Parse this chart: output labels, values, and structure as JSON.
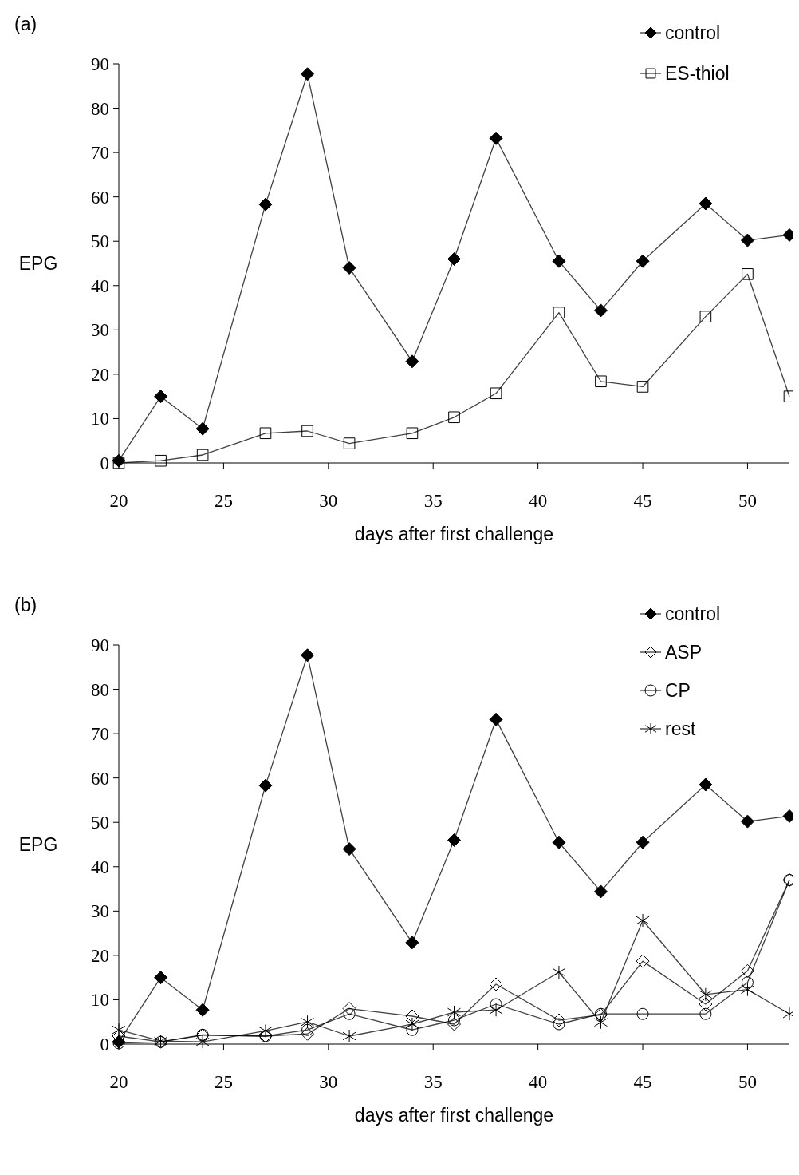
{
  "chart_data": [
    {
      "type": "line",
      "annotations": [
        "(a)"
      ],
      "xlabel": "days after first challenge",
      "ylabel": "EPG",
      "x": [
        20,
        22,
        24,
        27,
        29,
        31,
        34,
        36,
        38,
        41,
        43,
        45,
        48,
        50,
        52
      ],
      "xlim": [
        20,
        52
      ],
      "xticks": [
        20,
        25,
        30,
        35,
        40,
        45,
        50
      ],
      "ylim": [
        0,
        90
      ],
      "yticks": [
        0,
        10,
        20,
        30,
        40,
        50,
        60,
        70,
        80,
        90
      ],
      "grid": false,
      "legend": "top right",
      "series": [
        {
          "name": "control",
          "color": "#000000",
          "marker": "diamond",
          "values": [
            0.5,
            15,
            7.7,
            58.3,
            87.7,
            44,
            22.9,
            46,
            73.2,
            45.5,
            34.4,
            45.5,
            58.5,
            50.2,
            51.4
          ]
        },
        {
          "name": "ES-thiol",
          "color": "#000000",
          "marker": "square",
          "values": [
            0,
            0.5,
            1.8,
            6.7,
            7.2,
            4.4,
            6.7,
            10.3,
            15.7,
            33.9,
            18.4,
            17.2,
            33,
            42.6,
            15
          ]
        }
      ]
    },
    {
      "type": "line",
      "annotations": [
        "(b)"
      ],
      "xlabel": "days after first challenge",
      "ylabel": "EPG",
      "x": [
        20,
        22,
        24,
        27,
        29,
        31,
        34,
        36,
        38,
        41,
        43,
        45,
        48,
        50,
        52
      ],
      "xlim": [
        20,
        52
      ],
      "xticks": [
        20,
        25,
        30,
        35,
        40,
        45,
        50
      ],
      "ylim": [
        0,
        90
      ],
      "yticks": [
        0,
        10,
        20,
        30,
        40,
        50,
        60,
        70,
        80,
        90
      ],
      "grid": false,
      "legend": "top right",
      "series": [
        {
          "name": "control",
          "color": "#000000",
          "marker": "diamond",
          "values": [
            0.5,
            15,
            7.7,
            58.3,
            87.7,
            44,
            22.9,
            46,
            73.2,
            45.5,
            34.4,
            45.5,
            58.5,
            50.2,
            51.4
          ]
        },
        {
          "name": "ASP",
          "color": "#000000",
          "marker": "diamond",
          "values": [
            1.8,
            0.5,
            2,
            1.8,
            2.3,
            8,
            6.3,
            4.5,
            13.5,
            5.4,
            6.6,
            18.7,
            9,
            16.5,
            37
          ]
        },
        {
          "name": "CP",
          "color": "#000000",
          "marker": "circle",
          "values": [
            0.2,
            0.5,
            2.1,
            1.8,
            3.2,
            6.8,
            3.2,
            5.4,
            9,
            4.5,
            6.8,
            6.8,
            6.8,
            13.9,
            37
          ]
        },
        {
          "name": "rest",
          "color": "#000000",
          "marker": "cross",
          "values": [
            3.2,
            0.7,
            0.5,
            3,
            5,
            1.8,
            4.5,
            7.2,
            7.7,
            16.2,
            4.9,
            27.9,
            11.2,
            12.3,
            6.8
          ]
        }
      ]
    }
  ]
}
